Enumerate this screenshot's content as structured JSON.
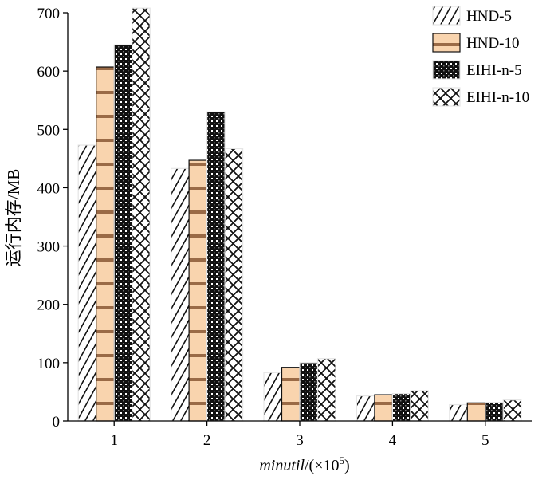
{
  "chart_data": {
    "type": "bar",
    "categories": [
      "1",
      "2",
      "3",
      "4",
      "5"
    ],
    "series": [
      {
        "name": "HND-5",
        "values": [
          473,
          433,
          83,
          43,
          28
        ]
      },
      {
        "name": "HND-10",
        "values": [
          607,
          447,
          92,
          45,
          31
        ]
      },
      {
        "name": "EIHI-n-5",
        "values": [
          645,
          530,
          100,
          47,
          32
        ]
      },
      {
        "name": "EIHI-n-10",
        "values": [
          708,
          467,
          107,
          52,
          36
        ]
      }
    ],
    "title": "",
    "xlabel_italic": "minutil",
    "xlabel_rest": "/(×10",
    "xlabel_sup": "5",
    "xlabel_close": ")",
    "ylabel": "运行内存/MB",
    "ylim": [
      0,
      700
    ],
    "yticks": [
      0,
      100,
      200,
      300,
      400,
      500,
      600,
      700
    ],
    "grid": false,
    "legend_position": "top-right",
    "patterns": [
      "diagonal-hatch",
      "orange-horizontal-stripes",
      "dark-checker",
      "cross-hatch"
    ]
  }
}
